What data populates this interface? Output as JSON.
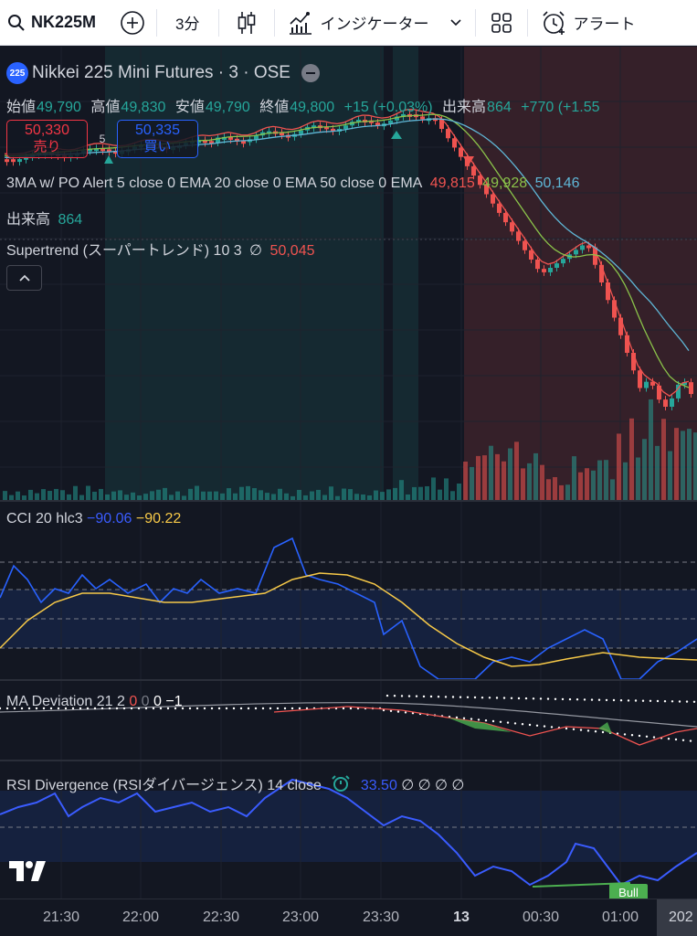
{
  "toolbar": {
    "symbol": "NK225M",
    "interval": "3分",
    "indicators_label": "インジケーター",
    "alert_label": "アラート"
  },
  "chart": {
    "badge": "225",
    "title": "Nikkei 225 Mini Futures · 3 · OSE",
    "ohlc": {
      "open_label": "始値",
      "open": "49,790",
      "high_label": "高値",
      "high": "49,830",
      "low_label": "安値",
      "low": "49,790",
      "close_label": "終値",
      "close": "49,800",
      "change": "+15 (+0.03%)",
      "volume_label": "出来高",
      "volume": "864",
      "volume_change": "+770 (+1.55"
    },
    "sell": {
      "price": "50,330",
      "label": "売り"
    },
    "buy": {
      "price": "50,335",
      "label": "買い"
    },
    "spread": "5",
    "indicator_ma": {
      "name": "3MA w/ PO Alert 5 close 0 EMA 20 close 0 EMA 50 close 0 EMA",
      "v1": "49,815",
      "v2": "49,928",
      "v3": "50,146"
    },
    "indicator_volume": {
      "name": "出来高",
      "value": "864"
    },
    "indicator_supertrend": {
      "name": "Supertrend (スーパートレンド) 10 3",
      "na": "∅",
      "value": "50,045"
    }
  },
  "cci": {
    "name": "CCI 20 hlc3",
    "v1": "−90.06",
    "v2": "−90.22"
  },
  "ma_deviation": {
    "name": "MA Deviation 21 2",
    "v1": "0",
    "v2": "0",
    "v3": "0",
    "v4": "−1"
  },
  "rsi": {
    "name": "RSI Divergence (RSIダイバージェンス) 14 close",
    "value": "33.50",
    "na1": "∅",
    "na2": "∅",
    "na3": "∅",
    "na4": "∅",
    "bull_label": "Bull"
  },
  "time_axis": {
    "ticks": [
      "21:30",
      "22:00",
      "22:30",
      "23:00",
      "23:30",
      "13",
      "00:30",
      "01:00"
    ],
    "tag": "202"
  },
  "colors": {
    "up": "#26a69a",
    "down": "#ef5350",
    "cci_line": "#2962ff",
    "cci_ma": "#f7c948",
    "rsi_line": "#3a5cff",
    "ema5": "#ef5350",
    "ema20": "#8bc34a",
    "ema50": "#5fb6d6"
  }
}
